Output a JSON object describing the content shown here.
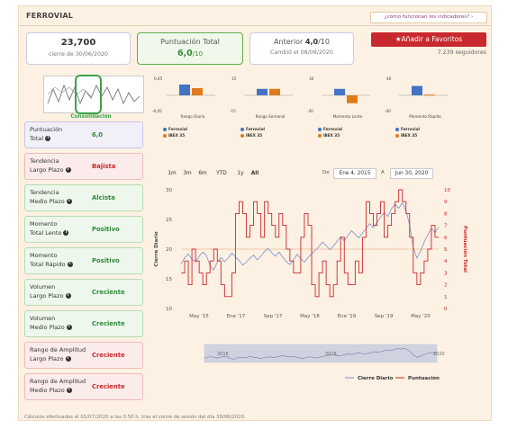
{
  "header": {
    "title": "FERROVIAL",
    "help_link": "¿cómo funcionan los indicadores?"
  },
  "cards": {
    "price": {
      "value": "23,700",
      "sub": "cierre de 30/06/2020"
    },
    "score": {
      "label": "Puntuación Total",
      "value": "6,0",
      "max": "/10"
    },
    "previous": {
      "label": "Anterior",
      "value": "4,0",
      "max": "/10",
      "sub": "Cambió el 08/06/2020"
    }
  },
  "favorites": {
    "button": "Añadir a Favoritos",
    "followers": "7.239 seguidores"
  },
  "thumbnail": {
    "label": "Consolidación"
  },
  "indicators": [
    {
      "line1": "Puntuación",
      "line2": "Total",
      "value": "6,0",
      "state": "neu"
    },
    {
      "line1": "Tendencia",
      "line2": "Largo Plazo",
      "value": "Bajista",
      "state": "neg"
    },
    {
      "line1": "Tendencia",
      "line2": "Medio Plazo",
      "value": "Alcista",
      "state": "pos"
    },
    {
      "line1": "Momento",
      "line2": "Total Lento",
      "value": "Positivo",
      "state": "pos"
    },
    {
      "line1": "Momento",
      "line2": "Total Rápido",
      "value": "Positivo",
      "state": "pos"
    },
    {
      "line1": "Volumen",
      "line2": "Largo Plazo",
      "value": "Creciente",
      "state": "pos"
    },
    {
      "line1": "Volumen",
      "line2": "Medio Plazo",
      "value": "Creciente",
      "state": "pos"
    },
    {
      "line1": "Rango de Amplitud",
      "line2": "Largo Plazo",
      "value": "Creciente",
      "state": "neg"
    },
    {
      "line1": "Rango de Amplitud",
      "line2": "Medio Plazo",
      "value": "Creciente",
      "state": "neg"
    }
  ],
  "mini_charts": [
    {
      "title": "Rango Diario",
      "top": "0,45",
      "bottom": "-0,45",
      "blue": 0.75,
      "orange": 0.5
    },
    {
      "title": "Rango Semanal",
      "top": "15",
      "bottom": "-15",
      "blue": 0.45,
      "orange": 0.45
    },
    {
      "title": "Momento Lento",
      "top": "30",
      "bottom": "-30",
      "blue": 0.45,
      "orange": -0.55
    },
    {
      "title": "Momento Rápido",
      "top": "40",
      "bottom": "-40",
      "blue": 0.65,
      "orange": 0.05
    }
  ],
  "mini_legend": {
    "a": "Ferrovial",
    "b": "IBEX 35"
  },
  "colors": {
    "blue": "#4472c4",
    "orange": "#e07b1c",
    "red": "#c8292e",
    "green": "#3fa14a",
    "price_line": "#7b8fd0"
  },
  "range_buttons": [
    "1m",
    "3m",
    "6m",
    "YTD",
    "1y",
    "All"
  ],
  "range_selected": "All",
  "dates": {
    "de_label": "De",
    "from": "Ene 4, 2015",
    "a_label": "A",
    "to": "Jun 30, 2020"
  },
  "chart_data": {
    "type": "line",
    "ylabel": "Cierre Diario",
    "y2label": "Puntuación Total",
    "ylim": [
      10,
      30
    ],
    "y2lim": [
      0,
      10
    ],
    "y_ticks": [
      "10",
      "15",
      "20",
      "25",
      "30"
    ],
    "y2_ticks": [
      "0",
      "1",
      "2",
      "3",
      "4",
      "5",
      "6",
      "7",
      "8",
      "9",
      "10"
    ],
    "x_ticks": [
      "May '15",
      "Ene '17",
      "Sep '17",
      "May '18",
      "Ene '19",
      "Sep '19",
      "May '20"
    ],
    "navigator_labels": [
      "2016",
      "2018",
      "2020"
    ],
    "series": [
      {
        "name": "Cierre Diario",
        "color": "#7b8fd0",
        "values": [
          17.5,
          18.5,
          19.2,
          18.3,
          17.8,
          18.8,
          19.5,
          18.9,
          17.2,
          16.5,
          17.8,
          18.6,
          17.9,
          18.5,
          19.3,
          18.7,
          18.1,
          17.3,
          17.8,
          18.5,
          19.0,
          18.2,
          18.8,
          19.6,
          20.1,
          19.4,
          18.8,
          19.5,
          18.7,
          17.9,
          17.4,
          18.2,
          19.1,
          18.4,
          17.8,
          18.6,
          19.2,
          19.8,
          20.4,
          21.2,
          20.6,
          19.9,
          20.5,
          21.3,
          22.1,
          21.4,
          22.3,
          23.1,
          22.5,
          21.9,
          22.7,
          23.5,
          24.3,
          23.6,
          24.5,
          25.4,
          26.2,
          25.5,
          26.8,
          27.6,
          26.9,
          27.8,
          26.4,
          24.1,
          20.3,
          18.5,
          19.6,
          21.2,
          22.4,
          23.5,
          22.8,
          23.7
        ]
      },
      {
        "name": "Puntuación",
        "color": "#c8292e",
        "values": [
          3,
          4,
          2,
          5,
          4,
          3,
          2,
          3,
          4,
          5,
          4,
          2,
          1,
          1,
          3,
          8,
          9,
          8,
          6,
          7,
          9,
          8,
          6,
          9,
          8,
          7,
          6,
          8,
          7,
          5,
          4,
          3,
          3,
          6,
          8,
          7,
          2,
          1,
          3,
          4,
          2,
          1,
          2,
          4,
          6,
          3,
          2,
          2,
          4,
          3,
          6,
          9,
          8,
          7,
          8,
          9,
          6,
          7,
          8,
          9,
          10,
          9,
          8,
          6,
          3,
          2,
          3,
          4,
          5,
          7,
          6,
          6
        ]
      }
    ],
    "legend": [
      "Cierre Diario",
      "Puntuación"
    ]
  },
  "footer": "Cálculos efectuados el 01/07/2020 a las 0:50 h. tras el cierre de sesión del día 30/06/2020."
}
